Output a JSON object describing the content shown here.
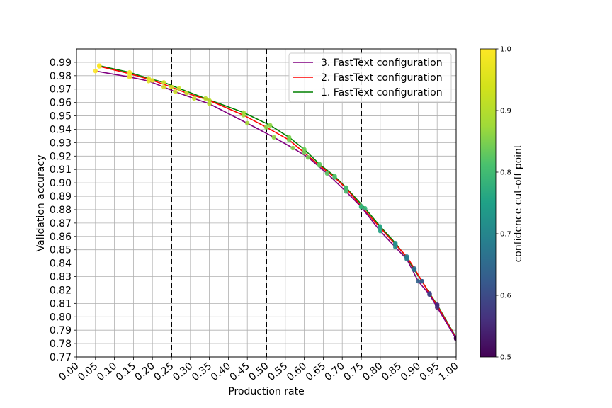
{
  "chart_data": {
    "type": "line",
    "xlabel": "Production rate",
    "ylabel": "Validation accuracy",
    "xlim": [
      0.0,
      1.0
    ],
    "ylim": [
      0.77,
      1.0
    ],
    "xticks": [
      "0.00",
      "0.05",
      "0.10",
      "0.15",
      "0.20",
      "0.25",
      "0.30",
      "0.35",
      "0.40",
      "0.45",
      "0.50",
      "0.55",
      "0.60",
      "0.65",
      "0.70",
      "0.75",
      "0.80",
      "0.85",
      "0.90",
      "0.95",
      "1.00"
    ],
    "yticks": [
      "0.77",
      "0.78",
      "0.79",
      "0.80",
      "0.81",
      "0.82",
      "0.83",
      "0.84",
      "0.85",
      "0.86",
      "0.87",
      "0.88",
      "0.89",
      "0.90",
      "0.91",
      "0.92",
      "0.93",
      "0.94",
      "0.95",
      "0.96",
      "0.97",
      "0.98",
      "0.99"
    ],
    "grid": true,
    "legend_position": "top-right",
    "vlines": [
      0.25,
      0.5,
      0.75
    ],
    "colorbar": {
      "label": "confidence cut-off point",
      "range": [
        0.5,
        1.0
      ],
      "ticks": [
        "0.5",
        "0.6",
        "0.7",
        "0.8",
        "0.9",
        "1.0"
      ],
      "colormap": "viridis"
    },
    "series": [
      {
        "name": "3. FastText configuration",
        "color": "#800080",
        "points": [
          {
            "x": 0.05,
            "y": 0.9835,
            "c": 1.0
          },
          {
            "x": 0.14,
            "y": 0.979,
            "c": 0.99
          },
          {
            "x": 0.19,
            "y": 0.976,
            "c": 0.98
          },
          {
            "x": 0.23,
            "y": 0.9715,
            "c": 0.97
          },
          {
            "x": 0.26,
            "y": 0.968,
            "c": 0.965
          },
          {
            "x": 0.31,
            "y": 0.963,
            "c": 0.955
          },
          {
            "x": 0.35,
            "y": 0.959,
            "c": 0.945
          },
          {
            "x": 0.45,
            "y": 0.9445,
            "c": 0.93
          },
          {
            "x": 0.52,
            "y": 0.934,
            "c": 0.915
          },
          {
            "x": 0.57,
            "y": 0.926,
            "c": 0.905
          },
          {
            "x": 0.61,
            "y": 0.919,
            "c": 0.89
          },
          {
            "x": 0.66,
            "y": 0.907,
            "c": 0.87
          },
          {
            "x": 0.71,
            "y": 0.8935,
            "c": 0.85
          },
          {
            "x": 0.75,
            "y": 0.882,
            "c": 0.83
          },
          {
            "x": 0.8,
            "y": 0.864,
            "c": 0.79
          },
          {
            "x": 0.84,
            "y": 0.852,
            "c": 0.75
          },
          {
            "x": 0.87,
            "y": 0.843,
            "c": 0.71
          },
          {
            "x": 0.9,
            "y": 0.8265,
            "c": 0.66
          },
          {
            "x": 0.93,
            "y": 0.8165,
            "c": 0.6
          },
          {
            "x": 0.95,
            "y": 0.807,
            "c": 0.56
          },
          {
            "x": 1.0,
            "y": 0.7835,
            "c": 0.5
          }
        ]
      },
      {
        "name": "2. FastText configuration",
        "color": "#ff0000",
        "points": [
          {
            "x": 0.06,
            "y": 0.987,
            "c": 1.0
          },
          {
            "x": 0.14,
            "y": 0.9815,
            "c": 0.99
          },
          {
            "x": 0.2,
            "y": 0.9765,
            "c": 0.98
          },
          {
            "x": 0.25,
            "y": 0.9715,
            "c": 0.965
          },
          {
            "x": 0.29,
            "y": 0.967,
            "c": 0.955
          },
          {
            "x": 0.35,
            "y": 0.9615,
            "c": 0.945
          },
          {
            "x": 0.44,
            "y": 0.9505,
            "c": 0.93
          },
          {
            "x": 0.5,
            "y": 0.9415,
            "c": 0.915
          },
          {
            "x": 0.56,
            "y": 0.932,
            "c": 0.9
          },
          {
            "x": 0.6,
            "y": 0.9225,
            "c": 0.89
          },
          {
            "x": 0.64,
            "y": 0.913,
            "c": 0.875
          },
          {
            "x": 0.68,
            "y": 0.904,
            "c": 0.86
          },
          {
            "x": 0.71,
            "y": 0.896,
            "c": 0.85
          },
          {
            "x": 0.75,
            "y": 0.8825,
            "c": 0.83
          },
          {
            "x": 0.8,
            "y": 0.8665,
            "c": 0.79
          },
          {
            "x": 0.84,
            "y": 0.854,
            "c": 0.75
          },
          {
            "x": 0.87,
            "y": 0.845,
            "c": 0.71
          },
          {
            "x": 0.89,
            "y": 0.836,
            "c": 0.68
          },
          {
            "x": 0.91,
            "y": 0.8265,
            "c": 0.64
          },
          {
            "x": 0.93,
            "y": 0.817,
            "c": 0.6
          },
          {
            "x": 0.95,
            "y": 0.8085,
            "c": 0.56
          },
          {
            "x": 1.0,
            "y": 0.784,
            "c": 0.5
          }
        ]
      },
      {
        "name": "1. FastText configuration",
        "color": "#008000",
        "points": [
          {
            "x": 0.06,
            "y": 0.9875,
            "c": 1.0
          },
          {
            "x": 0.14,
            "y": 0.9825,
            "c": 0.99
          },
          {
            "x": 0.19,
            "y": 0.978,
            "c": 0.98
          },
          {
            "x": 0.23,
            "y": 0.975,
            "c": 0.97
          },
          {
            "x": 0.27,
            "y": 0.9705,
            "c": 0.96
          },
          {
            "x": 0.34,
            "y": 0.963,
            "c": 0.945
          },
          {
            "x": 0.44,
            "y": 0.9525,
            "c": 0.93
          },
          {
            "x": 0.51,
            "y": 0.943,
            "c": 0.915
          },
          {
            "x": 0.56,
            "y": 0.934,
            "c": 0.9
          },
          {
            "x": 0.6,
            "y": 0.925,
            "c": 0.89
          },
          {
            "x": 0.64,
            "y": 0.914,
            "c": 0.875
          },
          {
            "x": 0.68,
            "y": 0.905,
            "c": 0.86
          },
          {
            "x": 0.71,
            "y": 0.8965,
            "c": 0.85
          },
          {
            "x": 0.76,
            "y": 0.881,
            "c": 0.83
          },
          {
            "x": 0.8,
            "y": 0.8675,
            "c": 0.8
          },
          {
            "x": 0.84,
            "y": 0.855,
            "c": 0.76
          },
          {
            "x": 0.87,
            "y": 0.844,
            "c": 0.71
          },
          {
            "x": 0.89,
            "y": 0.835,
            "c": 0.68
          },
          {
            "x": 0.91,
            "y": 0.8265,
            "c": 0.64
          },
          {
            "x": 0.93,
            "y": 0.8175,
            "c": 0.6
          },
          {
            "x": 0.95,
            "y": 0.809,
            "c": 0.56
          },
          {
            "x": 1.0,
            "y": 0.7845,
            "c": 0.5
          }
        ]
      }
    ]
  }
}
